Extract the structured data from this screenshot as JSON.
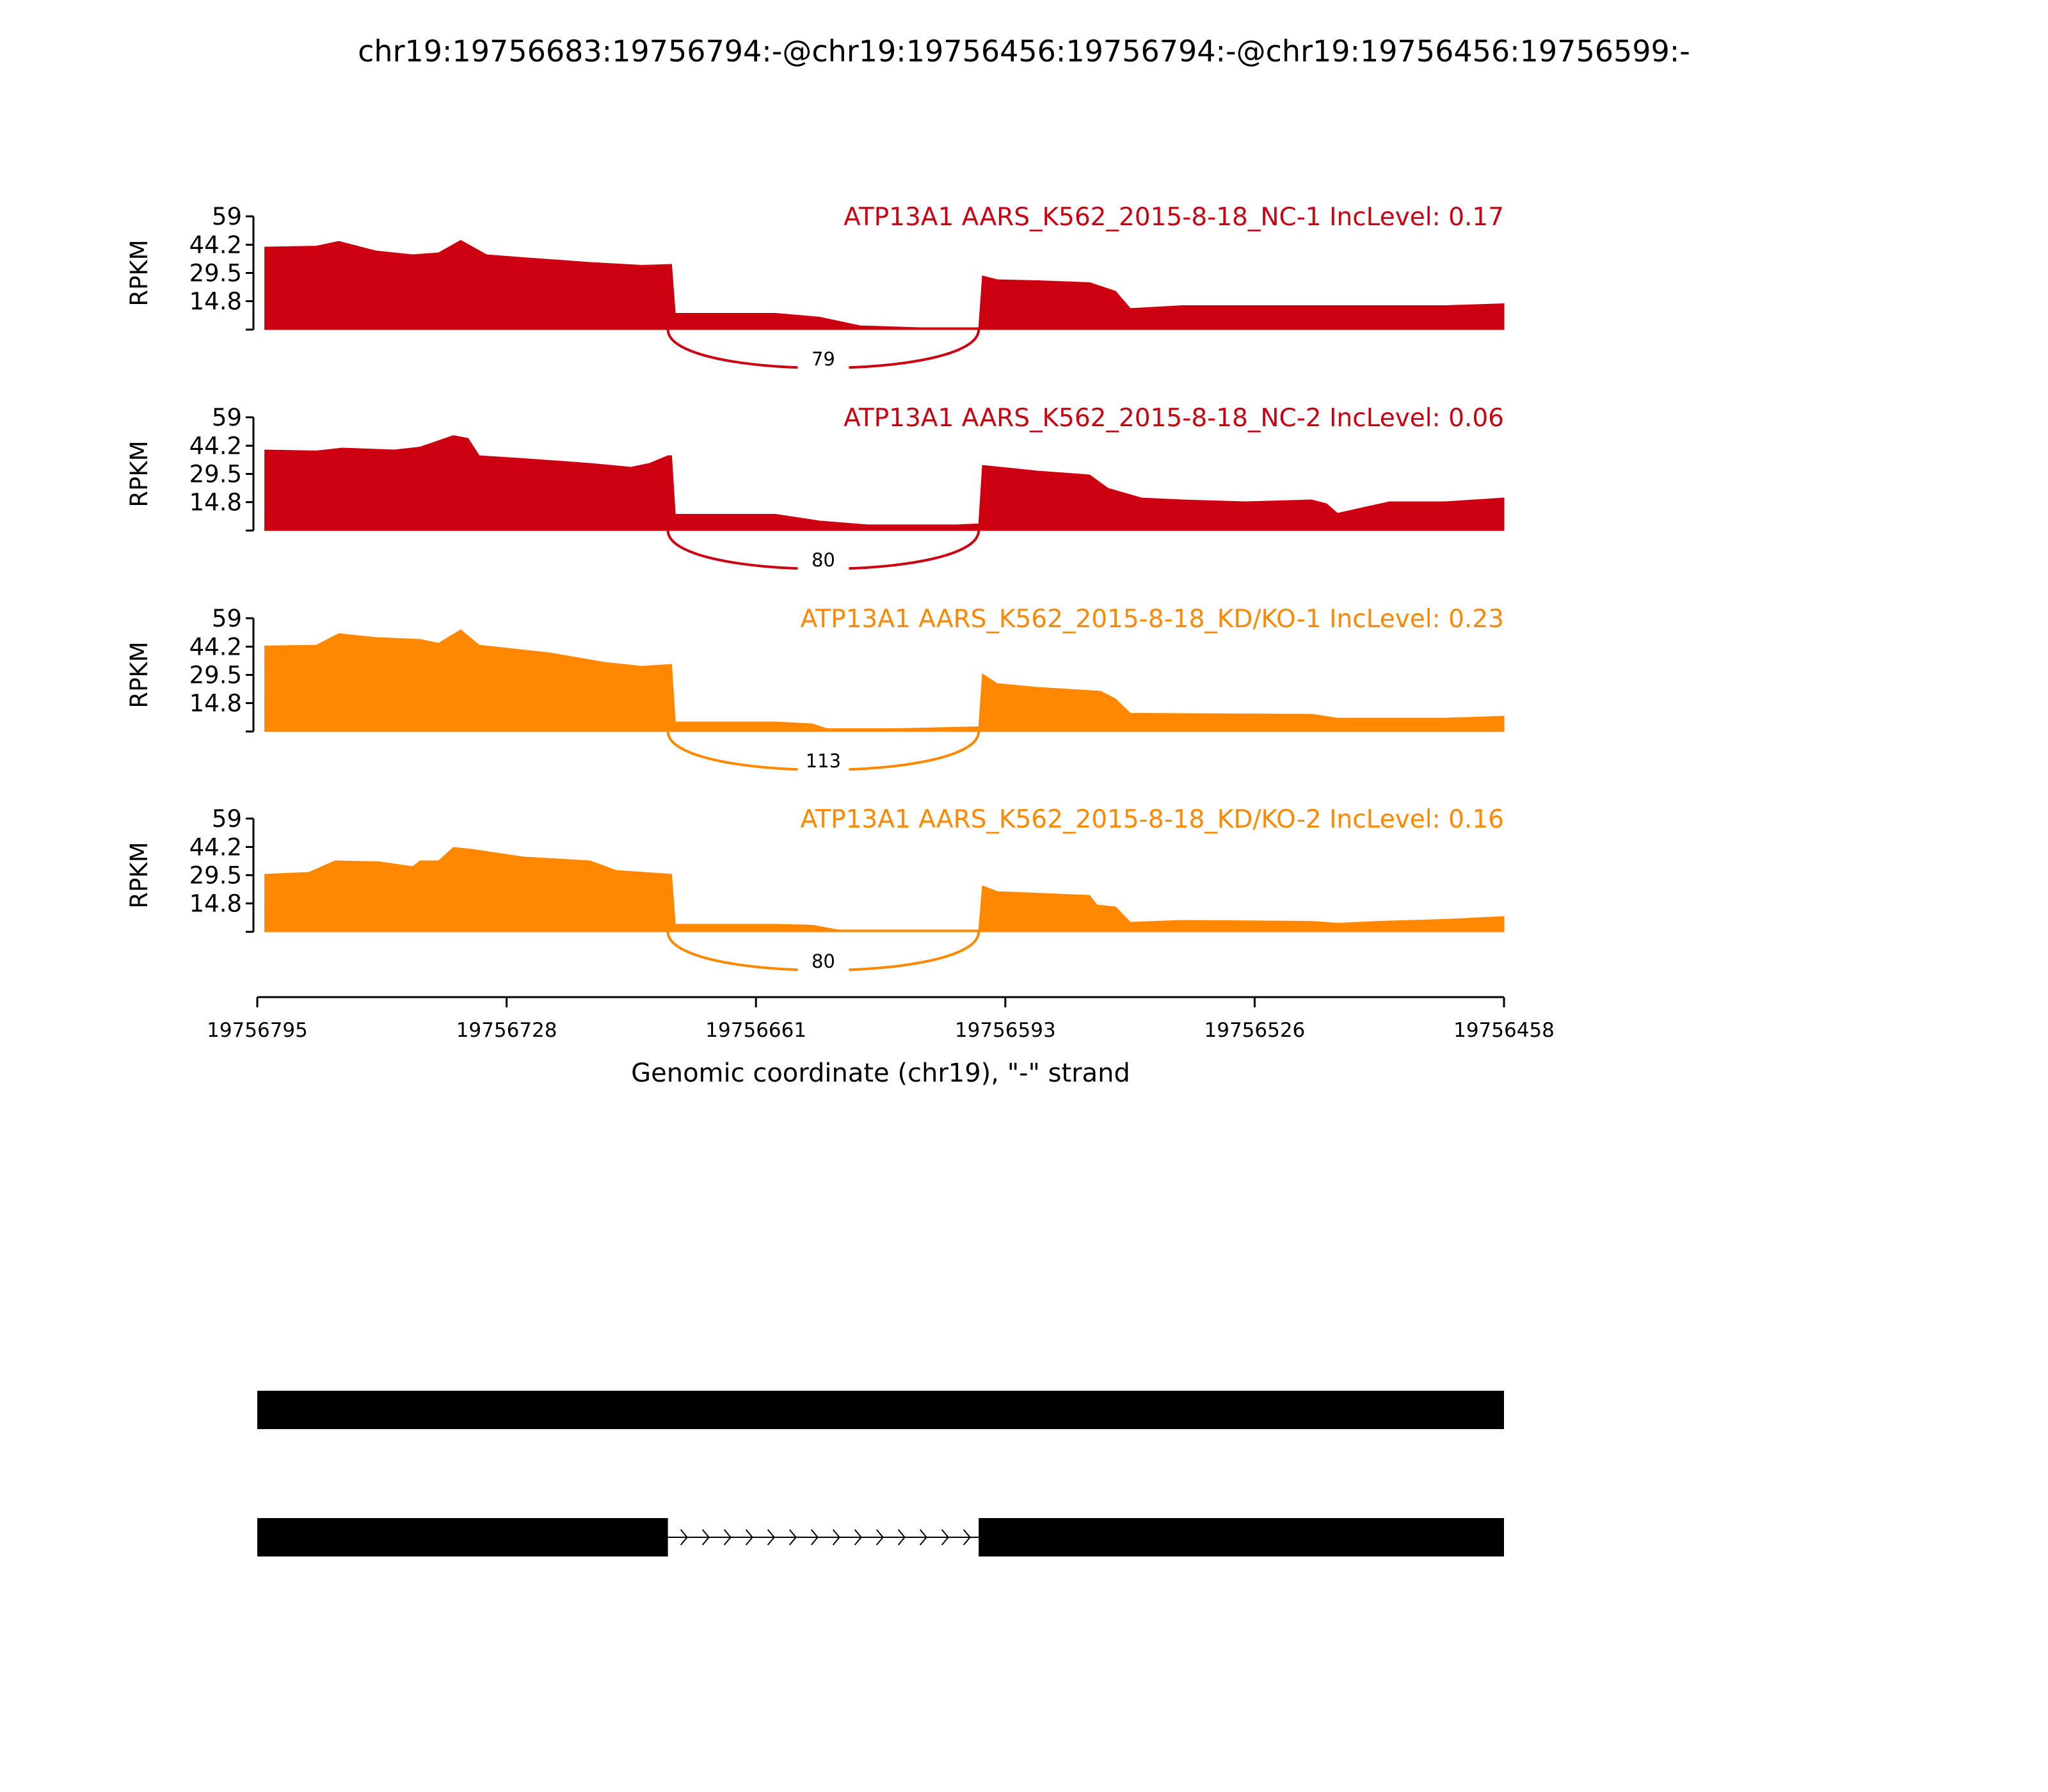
{
  "chart_data": {
    "type": "area",
    "title": "chr19:19756683:19756794:-@chr19:19756456:19756794:-@chr19:19756456:19756599:-",
    "xlabel": "Genomic coordinate (chr19), \"-\" strand",
    "ylabel": "RPKM",
    "xlim": [
      19756795,
      19756458
    ],
    "x_ticks": [
      "19756795",
      "19756728",
      "19756661",
      "19756593",
      "19756526",
      "19756458"
    ],
    "x_tick_values": [
      19756795,
      19756728,
      19756661,
      19756593,
      19756526,
      19756458
    ],
    "ylim": [
      0,
      59
    ],
    "y_ticks": [
      "59",
      "44.2",
      "29.5",
      "14.8"
    ],
    "y_tick_values": [
      59,
      44.2,
      29.5,
      14.8,
      0
    ],
    "colors": {
      "NC": "#cc0011",
      "KD": "#ff8800",
      "gene": "#000000"
    },
    "series": [
      {
        "name": "ATP13A1 AARS_K562_2015-8-18_NC-1 IncLevel: 0.17",
        "group": "NC",
        "junction": {
          "from": 19756684,
          "to": 19756600,
          "count": "79"
        },
        "points": [
          [
            19756793,
            43
          ],
          [
            19756779,
            43.5
          ],
          [
            19756773,
            46
          ],
          [
            19756763,
            41
          ],
          [
            19756753,
            39
          ],
          [
            19756746,
            40
          ],
          [
            19756740,
            46.5
          ],
          [
            19756733,
            39
          ],
          [
            19756723,
            37.5
          ],
          [
            19756705,
            35
          ],
          [
            19756691,
            33.5
          ],
          [
            19756683,
            34
          ],
          [
            19756682,
            8.5
          ],
          [
            19756655,
            8.5
          ],
          [
            19756643,
            6.5
          ],
          [
            19756632,
            2
          ],
          [
            19756616,
            1
          ],
          [
            19756600,
            1
          ],
          [
            19756599,
            28
          ],
          [
            19756595,
            26
          ],
          [
            19756584,
            25.5
          ],
          [
            19756570,
            24.5
          ],
          [
            19756563,
            20
          ],
          [
            19756559,
            11
          ],
          [
            19756545,
            12.5
          ],
          [
            19756510,
            12.5
          ],
          [
            19756474,
            12.5
          ],
          [
            19756458,
            13.5
          ]
        ]
      },
      {
        "name": "ATP13A1 AARS_K562_2015-8-18_NC-2 IncLevel: 0.06",
        "group": "NC",
        "junction": {
          "from": 19756684,
          "to": 19756600,
          "count": "80"
        },
        "points": [
          [
            19756793,
            42
          ],
          [
            19756779,
            41.5
          ],
          [
            19756772,
            43
          ],
          [
            19756758,
            42
          ],
          [
            19756751,
            43.5
          ],
          [
            19756742,
            49.5
          ],
          [
            19756738,
            48
          ],
          [
            19756735,
            39
          ],
          [
            19756723,
            37.5
          ],
          [
            19756705,
            35
          ],
          [
            19756694,
            33
          ],
          [
            19756689,
            35
          ],
          [
            19756684,
            39
          ],
          [
            19756683,
            39
          ],
          [
            19756682,
            8.5
          ],
          [
            19756655,
            8.5
          ],
          [
            19756643,
            5
          ],
          [
            19756630,
            3
          ],
          [
            19756606,
            3
          ],
          [
            19756600,
            3.5
          ],
          [
            19756599,
            34
          ],
          [
            19756584,
            31
          ],
          [
            19756570,
            29
          ],
          [
            19756565,
            22
          ],
          [
            19756556,
            17
          ],
          [
            19756545,
            16
          ],
          [
            19756528,
            15
          ],
          [
            19756510,
            16
          ],
          [
            19756506,
            14
          ],
          [
            19756503,
            9
          ],
          [
            19756496,
            12
          ],
          [
            19756489,
            15
          ],
          [
            19756474,
            15
          ],
          [
            19756458,
            17
          ]
        ]
      },
      {
        "name": "ATP13A1 AARS_K562_2015-8-18_KD/KO-1 IncLevel: 0.23",
        "group": "KD",
        "junction": {
          "from": 19756684,
          "to": 19756600,
          "count": "113"
        },
        "points": [
          [
            19756793,
            44.6
          ],
          [
            19756779,
            45
          ],
          [
            19756773,
            51
          ],
          [
            19756763,
            49
          ],
          [
            19756751,
            48
          ],
          [
            19756746,
            46
          ],
          [
            19756740,
            53
          ],
          [
            19756735,
            45
          ],
          [
            19756716,
            41
          ],
          [
            19756701,
            36
          ],
          [
            19756691,
            34
          ],
          [
            19756683,
            35
          ],
          [
            19756682,
            5
          ],
          [
            19756655,
            5
          ],
          [
            19756645,
            4
          ],
          [
            19756641,
            1.5
          ],
          [
            19756623,
            1.5
          ],
          [
            19756600,
            2.5
          ],
          [
            19756599,
            30
          ],
          [
            19756595,
            25
          ],
          [
            19756584,
            23
          ],
          [
            19756567,
            21
          ],
          [
            19756563,
            17
          ],
          [
            19756559,
            9.5
          ],
          [
            19756510,
            9
          ],
          [
            19756503,
            7
          ],
          [
            19756474,
            7
          ],
          [
            19756458,
            8
          ]
        ]
      },
      {
        "name": "ATP13A1 AARS_K562_2015-8-18_KD/KO-2 IncLevel: 0.16",
        "group": "KD",
        "junction": {
          "from": 19756684,
          "to": 19756600,
          "count": "80"
        },
        "points": [
          [
            19756793,
            30
          ],
          [
            19756781,
            31
          ],
          [
            19756774,
            37
          ],
          [
            19756762,
            36.5
          ],
          [
            19756753,
            34
          ],
          [
            19756751,
            37
          ],
          [
            19756746,
            37
          ],
          [
            19756742,
            44
          ],
          [
            19756737,
            43
          ],
          [
            19756723,
            39
          ],
          [
            19756705,
            37
          ],
          [
            19756698,
            32
          ],
          [
            19756683,
            30
          ],
          [
            19756682,
            4
          ],
          [
            19756655,
            4
          ],
          [
            19756645,
            3.5
          ],
          [
            19756638,
            1
          ],
          [
            19756600,
            1
          ],
          [
            19756599,
            24
          ],
          [
            19756595,
            21
          ],
          [
            19756570,
            19
          ],
          [
            19756568,
            14
          ],
          [
            19756563,
            13
          ],
          [
            19756559,
            5
          ],
          [
            19756545,
            6
          ],
          [
            19756510,
            5.5
          ],
          [
            19756503,
            4.5
          ],
          [
            19756492,
            5.5
          ],
          [
            19756474,
            6.5
          ],
          [
            19756458,
            8
          ]
        ]
      }
    ],
    "gene_models": [
      {
        "exons": [
          [
            19756795,
            19756458
          ]
        ]
      },
      {
        "exons": [
          [
            19756795,
            19756684
          ],
          [
            19756600,
            19756458
          ]
        ]
      }
    ]
  }
}
